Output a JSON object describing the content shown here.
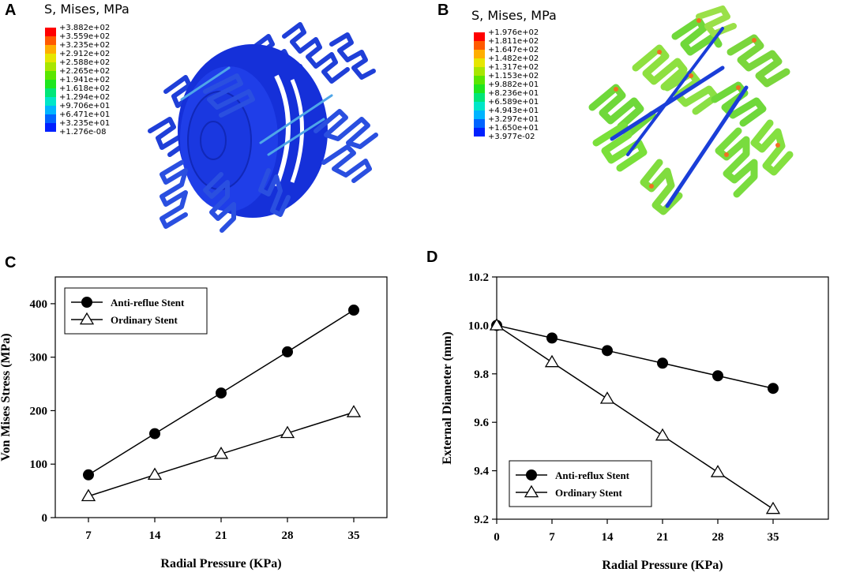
{
  "panels": {
    "A": {
      "letter": "A",
      "legend_title": "S, Mises, MPa",
      "colorbar_labels": [
        "+3.882e+02",
        "+3.559e+02",
        "+3.235e+02",
        "+2.912e+02",
        "+2.588e+02",
        "+2.265e+02",
        "+1.941e+02",
        "+1.618e+02",
        "+1.294e+02",
        "+9.706e+01",
        "+6.471e+01",
        "+3.235e+01",
        "+1.276e-08"
      ]
    },
    "B": {
      "letter": "B",
      "legend_title": "S, Mises, MPa",
      "colorbar_labels": [
        "+1.976e+02",
        "+1.811e+02",
        "+1.647e+02",
        "+1.482e+02",
        "+1.317e+02",
        "+1.153e+02",
        "+9.882e+01",
        "+8.236e+01",
        "+6.589e+01",
        "+4.943e+01",
        "+3.297e+01",
        "+1.650e+01",
        "+3.977e-02"
      ]
    },
    "C": {
      "letter": "C"
    },
    "D": {
      "letter": "D"
    }
  },
  "colorbar_colors": [
    "#ff0000",
    "#ff5a00",
    "#ffae00",
    "#e6e600",
    "#a8e600",
    "#5ae600",
    "#1ee61e",
    "#00e678",
    "#00e6c8",
    "#00b4ff",
    "#0064ff",
    "#0020ff",
    "#0000e6"
  ],
  "chart_data": [
    {
      "type": "line",
      "title": "",
      "xlabel": "Radial Pressure (KPa)",
      "ylabel": "Von Mises Stress (MPa)",
      "x": [
        7,
        14,
        21,
        28,
        35
      ],
      "xticks": [
        "7",
        "14",
        "21",
        "28",
        "35"
      ],
      "yticks": [
        "0",
        "100",
        "200",
        "300",
        "400"
      ],
      "xlim": [
        3.5,
        38.5
      ],
      "ylim": [
        0,
        450
      ],
      "legend_position": "top-left",
      "series": [
        {
          "name": "Anti-reflue Stent",
          "marker": "filled-circle",
          "values": [
            80,
            157,
            233,
            310,
            388
          ]
        },
        {
          "name": "Ordinary Stent",
          "marker": "open-triangle",
          "values": [
            40,
            80,
            119,
            158,
            197
          ]
        }
      ]
    },
    {
      "type": "line",
      "title": "",
      "xlabel": "Radial Pressure (KPa)",
      "ylabel": "External Diameter (mm)",
      "x": [
        0,
        7,
        14,
        21,
        28,
        35
      ],
      "xticks": [
        "0",
        "7",
        "14",
        "21",
        "28",
        "35"
      ],
      "yticks": [
        "9.2",
        "9.4",
        "9.6",
        "9.8",
        "10.0",
        "10.2"
      ],
      "xlim": [
        0,
        42
      ],
      "ylim": [
        9.2,
        10.2
      ],
      "legend_position": "bottom-left",
      "series": [
        {
          "name": "Anti-reflux Stent",
          "marker": "filled-circle",
          "values": [
            10.0,
            9.948,
            9.896,
            9.844,
            9.792,
            9.74
          ]
        },
        {
          "name": "Ordinary Stent",
          "marker": "open-triangle",
          "values": [
            10.0,
            9.848,
            9.697,
            9.545,
            9.394,
            9.242
          ]
        }
      ]
    }
  ]
}
